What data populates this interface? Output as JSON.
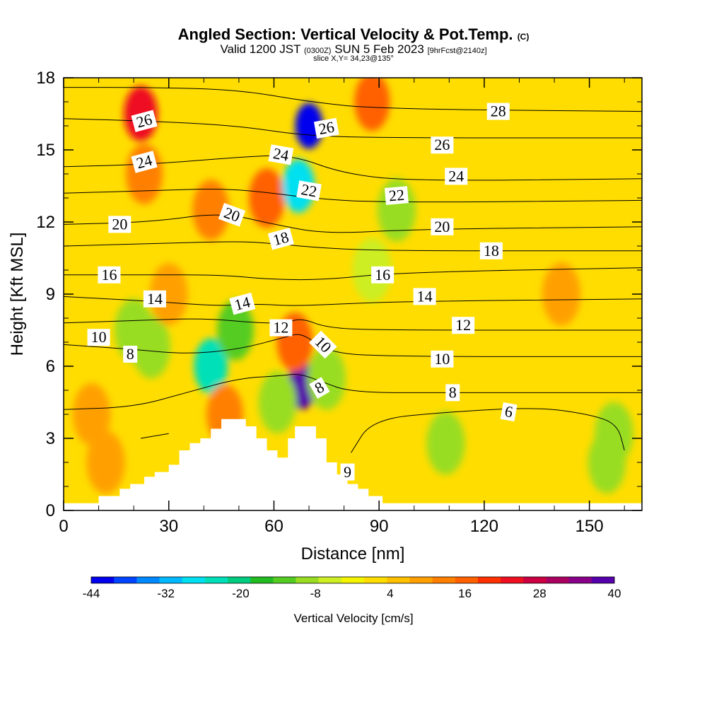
{
  "header": {
    "title_main": "Angled Section: Vertical Velocity & Pot.Temp.",
    "title_unit": "(C)",
    "valid_prefix": "Valid 1200 JST",
    "valid_utc": "(0300Z)",
    "valid_date": "SUN 5 Feb 2023",
    "valid_fcst": "[9hrFcst@2140z]",
    "slice": "slice X,Y= 34,23@135°"
  },
  "chart_data": {
    "type": "heatmap",
    "xlabel": "Distance [nm]",
    "ylabel": "Height [Kft MSL]",
    "xlim": [
      0,
      165
    ],
    "ylim": [
      0,
      18
    ],
    "x_ticks": [
      0,
      30,
      60,
      90,
      120,
      150
    ],
    "y_ticks": [
      0,
      3,
      6,
      9,
      12,
      15,
      18
    ],
    "colorbar": {
      "label": "Vertical Velocity [cm/s]",
      "ticks": [
        -44,
        -32,
        -20,
        -8,
        4,
        16,
        28,
        40
      ],
      "colors": [
        "#0000ee",
        "#0044ff",
        "#0088ff",
        "#00b8ff",
        "#00e0f0",
        "#00e0b8",
        "#00cc80",
        "#22bb22",
        "#55cc22",
        "#99dd22",
        "#ccee22",
        "#f4f400",
        "#ffdd00",
        "#ffc000",
        "#ffa000",
        "#ff8000",
        "#ff6000",
        "#ff3000",
        "#ee1020",
        "#cc0040",
        "#aa0060",
        "#880088",
        "#5500aa"
      ]
    },
    "background_value": 2,
    "velocity_features": [
      {
        "x": 22,
        "y": 16.5,
        "value": 24
      },
      {
        "x": 23,
        "y": 14.0,
        "value": 14
      },
      {
        "x": 88,
        "y": 17.0,
        "value": 18
      },
      {
        "x": 42,
        "y": 12.5,
        "value": 14
      },
      {
        "x": 58,
        "y": 13.0,
        "value": 16
      },
      {
        "x": 70,
        "y": 16.0,
        "value": -44
      },
      {
        "x": 67,
        "y": 13.5,
        "value": -28
      },
      {
        "x": 68,
        "y": 5.2,
        "value": 40
      },
      {
        "x": 66,
        "y": 7.0,
        "value": 16
      },
      {
        "x": 42,
        "y": 6.0,
        "value": -24
      },
      {
        "x": 49,
        "y": 7.5,
        "value": -14
      },
      {
        "x": 25,
        "y": 6.8,
        "value": -8
      },
      {
        "x": 20,
        "y": 7.5,
        "value": -8
      },
      {
        "x": 46,
        "y": 4.0,
        "value": 14
      },
      {
        "x": 61,
        "y": 4.5,
        "value": -10
      },
      {
        "x": 75,
        "y": 5.5,
        "value": -8
      },
      {
        "x": 95,
        "y": 12.5,
        "value": -8
      },
      {
        "x": 88,
        "y": 10.0,
        "value": -6
      },
      {
        "x": 155,
        "y": 2.0,
        "value": -10
      },
      {
        "x": 157,
        "y": 3.2,
        "value": -8
      },
      {
        "x": 109,
        "y": 2.8,
        "value": -8
      },
      {
        "x": 12,
        "y": 2.0,
        "value": 8
      },
      {
        "x": 8,
        "y": 4.0,
        "value": 10
      },
      {
        "x": 30,
        "y": 9.0,
        "value": 10
      },
      {
        "x": 142,
        "y": 9.0,
        "value": 8
      }
    ],
    "isentropes": [
      {
        "label": "6",
        "points": [
          [
            82,
            2.4
          ],
          [
            88,
            3.8
          ],
          [
            110,
            4.1
          ],
          [
            135,
            4.3
          ],
          [
            150,
            4.0
          ],
          [
            158,
            3.6
          ],
          [
            160,
            2.5
          ]
        ]
      },
      {
        "label": "6",
        "points": [
          [
            22,
            3.0
          ],
          [
            30,
            3.2
          ]
        ]
      },
      {
        "label": "8",
        "points": [
          [
            0,
            4.2
          ],
          [
            20,
            4.3
          ],
          [
            35,
            4.9
          ],
          [
            50,
            5.5
          ],
          [
            62,
            5.6
          ],
          [
            67,
            5.7
          ],
          [
            73,
            5.4
          ],
          [
            82,
            4.9
          ],
          [
            110,
            4.9
          ],
          [
            165,
            4.9
          ]
        ]
      },
      {
        "label": "10",
        "points": [
          [
            0,
            6.9
          ],
          [
            20,
            6.7
          ],
          [
            35,
            6.5
          ],
          [
            50,
            6.7
          ],
          [
            63,
            7.2
          ],
          [
            68,
            7.4
          ],
          [
            75,
            6.6
          ],
          [
            90,
            6.4
          ],
          [
            165,
            6.4
          ]
        ]
      },
      {
        "label": "12",
        "points": [
          [
            0,
            7.8
          ],
          [
            20,
            7.9
          ],
          [
            40,
            8.0
          ],
          [
            55,
            7.8
          ],
          [
            63,
            7.8
          ],
          [
            68,
            8.0
          ],
          [
            75,
            7.6
          ],
          [
            90,
            7.5
          ],
          [
            165,
            7.5
          ]
        ]
      },
      {
        "label": "14",
        "points": [
          [
            0,
            8.9
          ],
          [
            25,
            8.7
          ],
          [
            45,
            8.5
          ],
          [
            55,
            8.6
          ],
          [
            65,
            8.5
          ],
          [
            80,
            8.6
          ],
          [
            100,
            8.7
          ],
          [
            165,
            8.8
          ]
        ]
      },
      {
        "label": "16",
        "points": [
          [
            0,
            9.8
          ],
          [
            25,
            9.8
          ],
          [
            45,
            9.8
          ],
          [
            60,
            9.6
          ],
          [
            75,
            9.6
          ],
          [
            95,
            9.9
          ],
          [
            165,
            10.1
          ]
        ]
      },
      {
        "label": "18",
        "points": [
          [
            0,
            11.0
          ],
          [
            25,
            11.1
          ],
          [
            50,
            11.2
          ],
          [
            60,
            11.1
          ],
          [
            75,
            10.9
          ],
          [
            95,
            10.8
          ],
          [
            165,
            10.8
          ]
        ]
      },
      {
        "label": "20",
        "points": [
          [
            0,
            11.9
          ],
          [
            25,
            12.0
          ],
          [
            45,
            12.4
          ],
          [
            60,
            11.9
          ],
          [
            75,
            11.5
          ],
          [
            100,
            11.7
          ],
          [
            165,
            11.8
          ]
        ]
      },
      {
        "label": "22",
        "points": [
          [
            0,
            13.2
          ],
          [
            25,
            13.3
          ],
          [
            45,
            13.4
          ],
          [
            60,
            13.2
          ],
          [
            70,
            13.0
          ],
          [
            90,
            12.8
          ],
          [
            165,
            12.9
          ]
        ]
      },
      {
        "label": "24",
        "points": [
          [
            0,
            14.3
          ],
          [
            25,
            14.4
          ],
          [
            50,
            14.7
          ],
          [
            65,
            14.8
          ],
          [
            80,
            14.0
          ],
          [
            100,
            13.7
          ],
          [
            165,
            13.8
          ]
        ]
      },
      {
        "label": "26",
        "points": [
          [
            0,
            16.3
          ],
          [
            25,
            16.2
          ],
          [
            50,
            16.0
          ],
          [
            68,
            15.6
          ],
          [
            90,
            15.5
          ],
          [
            165,
            15.5
          ]
        ]
      },
      {
        "label": "28",
        "points": [
          [
            0,
            17.6
          ],
          [
            25,
            17.6
          ],
          [
            50,
            17.5
          ],
          [
            70,
            17.0
          ],
          [
            90,
            16.7
          ],
          [
            165,
            16.6
          ]
        ]
      }
    ],
    "contour_labels": [
      {
        "text": "26",
        "x": 23,
        "y": 16.2,
        "angle": -15
      },
      {
        "text": "24",
        "x": 23,
        "y": 14.5,
        "angle": -15
      },
      {
        "text": "20",
        "x": 16,
        "y": 11.9,
        "angle": 0
      },
      {
        "text": "16",
        "x": 13,
        "y": 9.8,
        "angle": 0
      },
      {
        "text": "14",
        "x": 26,
        "y": 8.8,
        "angle": 0
      },
      {
        "text": "10",
        "x": 10,
        "y": 7.2,
        "angle": 0
      },
      {
        "text": "8",
        "x": 19,
        "y": 6.5,
        "angle": 0
      },
      {
        "text": "20",
        "x": 48,
        "y": 12.3,
        "angle": 20
      },
      {
        "text": "14",
        "x": 51,
        "y": 8.6,
        "angle": -15
      },
      {
        "text": "24",
        "x": 62,
        "y": 14.8,
        "angle": 10
      },
      {
        "text": "26",
        "x": 75,
        "y": 15.9,
        "angle": -10
      },
      {
        "text": "22",
        "x": 70,
        "y": 13.3,
        "angle": 10
      },
      {
        "text": "18",
        "x": 62,
        "y": 11.3,
        "angle": -15
      },
      {
        "text": "12",
        "x": 62,
        "y": 7.6,
        "angle": 0
      },
      {
        "text": "10",
        "x": 74,
        "y": 6.9,
        "angle": 45
      },
      {
        "text": "8",
        "x": 73,
        "y": 5.1,
        "angle": -30
      },
      {
        "text": "6",
        "x": 81,
        "y": 1.6,
        "angle": 180
      },
      {
        "text": "22",
        "x": 95,
        "y": 13.1,
        "angle": -5
      },
      {
        "text": "16",
        "x": 91,
        "y": 9.8,
        "angle": 0
      },
      {
        "text": "28",
        "x": 124,
        "y": 16.6,
        "angle": 0
      },
      {
        "text": "26",
        "x": 108,
        "y": 15.2,
        "angle": 0
      },
      {
        "text": "24",
        "x": 112,
        "y": 13.9,
        "angle": 0
      },
      {
        "text": "20",
        "x": 108,
        "y": 11.8,
        "angle": 0
      },
      {
        "text": "18",
        "x": 122,
        "y": 10.8,
        "angle": 0
      },
      {
        "text": "14",
        "x": 103,
        "y": 8.9,
        "angle": 0
      },
      {
        "text": "12",
        "x": 114,
        "y": 7.7,
        "angle": 0
      },
      {
        "text": "10",
        "x": 108,
        "y": 6.3,
        "angle": 0
      },
      {
        "text": "8",
        "x": 111,
        "y": 4.9,
        "angle": 0
      },
      {
        "text": "6",
        "x": 127,
        "y": 4.1,
        "angle": 10
      }
    ],
    "terrain_profile": [
      [
        0,
        0.3
      ],
      [
        10,
        0.3
      ],
      [
        10,
        0.6
      ],
      [
        16,
        0.6
      ],
      [
        16,
        0.9
      ],
      [
        19,
        0.9
      ],
      [
        19,
        1.1
      ],
      [
        23,
        1.1
      ],
      [
        23,
        1.4
      ],
      [
        26,
        1.4
      ],
      [
        26,
        1.6
      ],
      [
        30,
        1.6
      ],
      [
        30,
        1.9
      ],
      [
        33,
        1.9
      ],
      [
        33,
        2.5
      ],
      [
        36,
        2.5
      ],
      [
        36,
        2.8
      ],
      [
        39,
        2.8
      ],
      [
        39,
        3.0
      ],
      [
        42,
        3.0
      ],
      [
        42,
        3.4
      ],
      [
        45,
        3.4
      ],
      [
        45,
        3.8
      ],
      [
        52,
        3.8
      ],
      [
        52,
        3.5
      ],
      [
        55,
        3.5
      ],
      [
        55,
        3.0
      ],
      [
        58,
        3.0
      ],
      [
        58,
        2.5
      ],
      [
        61,
        2.5
      ],
      [
        61,
        2.2
      ],
      [
        64,
        2.2
      ],
      [
        64,
        3.0
      ],
      [
        66,
        3.0
      ],
      [
        66,
        3.5
      ],
      [
        72,
        3.5
      ],
      [
        72,
        3.0
      ],
      [
        75,
        3.0
      ],
      [
        75,
        2.0
      ],
      [
        78,
        2.0
      ],
      [
        78,
        1.5
      ],
      [
        81,
        1.5
      ],
      [
        81,
        1.1
      ],
      [
        84,
        1.1
      ],
      [
        84,
        0.9
      ],
      [
        87,
        0.9
      ],
      [
        87,
        0.6
      ],
      [
        91,
        0.6
      ],
      [
        91,
        0.3
      ],
      [
        165,
        0.3
      ]
    ]
  }
}
